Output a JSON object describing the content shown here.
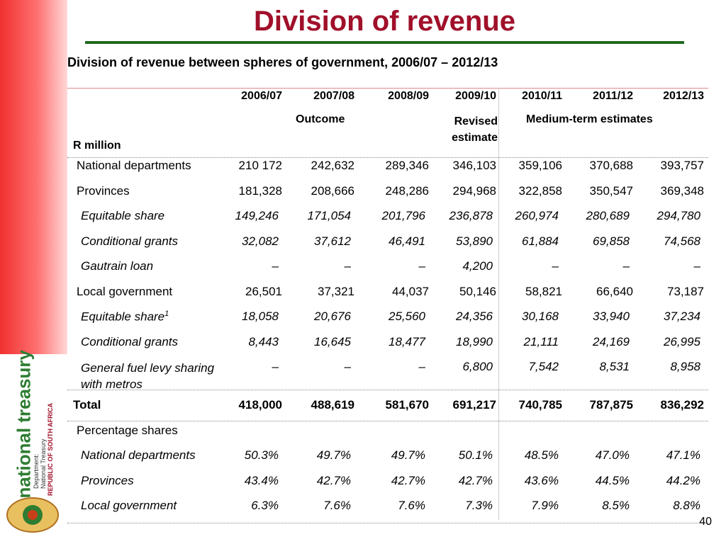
{
  "header": {
    "title": "Division of revenue",
    "subtitle": "Division of revenue between spheres of government, 2006/07 – 2012/13"
  },
  "sidebar": {
    "brand": "national treasury",
    "department": "Department:",
    "name": "National Treasury",
    "country": "REPUBLIC OF SOUTH AFRICA"
  },
  "table": {
    "unit": "R million",
    "columns": [
      "2006/07",
      "2007/08",
      "2008/09",
      "2009/10",
      "2010/11",
      "2011/12",
      "2012/13"
    ],
    "groups": [
      "Outcome",
      "Revised estimate",
      "Medium-term estimates"
    ],
    "rows": [
      {
        "label": "National departments",
        "values": [
          "210 172",
          "242,632",
          "289,346",
          "346,103",
          "359,106",
          "370,688",
          "393,757"
        ]
      },
      {
        "label": "Provinces",
        "values": [
          "181,328",
          "208,666",
          "248,286",
          "294,968",
          "322,858",
          "350,547",
          "369,348"
        ],
        "children": [
          {
            "label": "Equitable share",
            "values": [
              "149,246",
              "171,054",
              "201,796",
              "236,878",
              "260,974",
              "280,689",
              "294,780"
            ]
          },
          {
            "label": "Conditional grants",
            "values": [
              "32,082",
              "37,612",
              "46,491",
              "53,890",
              "61,884",
              "69,858",
              "74,568"
            ]
          },
          {
            "label": "Gautrain loan",
            "values": [
              "–",
              "–",
              "–",
              "4,200",
              "–",
              "–",
              "–"
            ]
          }
        ]
      },
      {
        "label": "Local government",
        "values": [
          "26,501",
          "37,321",
          "44,037",
          "50,146",
          "58,821",
          "66,640",
          "73,187"
        ],
        "children": [
          {
            "label": "Equitable share",
            "note": "1",
            "values": [
              "18,058",
              "20,676",
              "25,560",
              "24,356",
              "30,168",
              "33,940",
              "37,234"
            ]
          },
          {
            "label": "Conditional grants",
            "values": [
              "8,443",
              "16,645",
              "18,477",
              "18,990",
              "21,111",
              "24,169",
              "26,995"
            ]
          },
          {
            "label": "General fuel levy sharing with metros",
            "values": [
              "–",
              "–",
              "–",
              "6,800",
              "7,542",
              "8,531",
              "8,958"
            ]
          }
        ]
      },
      {
        "label": "Total",
        "bold": true,
        "values": [
          "418,000",
          "488,619",
          "581,670",
          "691,217",
          "740,785",
          "787,875",
          "836,292"
        ]
      },
      {
        "label": "Percentage shares",
        "children": [
          {
            "label": "National departments",
            "values": [
              "50.3%",
              "49.7%",
              "49.7%",
              "50.1%",
              "48.5%",
              "47.0%",
              "47.1%"
            ]
          },
          {
            "label": "Provinces",
            "values": [
              "43.4%",
              "42.7%",
              "42.7%",
              "42.7%",
              "43.6%",
              "44.5%",
              "44.2%"
            ]
          },
          {
            "label": "Local government",
            "values": [
              "6.3%",
              "7.6%",
              "7.6%",
              "7.3%",
              "7.9%",
              "8.5%",
              "8.8%"
            ]
          }
        ]
      }
    ]
  },
  "footer": {
    "page": "40"
  }
}
